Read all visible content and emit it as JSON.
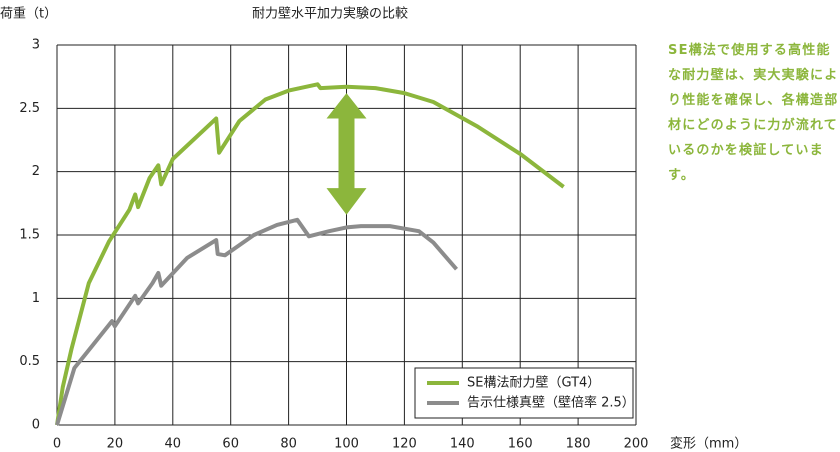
{
  "chart_data": {
    "type": "line",
    "title": "耐力壁水平加力実験の比較",
    "y_label": "荷重（t）",
    "x_label": "変形（mm）",
    "annotation": "SE構法で使用する高性能な耐力壁は、実大実験により性能を確保し、各構造部材にどのように力が流れているのかを検証しています。",
    "xlim": [
      0,
      200
    ],
    "xticks": [
      0,
      20,
      40,
      60,
      80,
      100,
      120,
      140,
      160,
      180,
      200
    ],
    "ylim": [
      0,
      3
    ],
    "yticks": [
      0,
      0.5,
      1,
      1.5,
      2,
      2.5,
      3
    ],
    "grid": true,
    "legend": "lower right",
    "series": [
      {
        "name": "SE構法耐力壁（GT4）",
        "color": "#8cb63c",
        "x": [
          0,
          2,
          5,
          11,
          18,
          25,
          27,
          28,
          32,
          35,
          36,
          40,
          55,
          56,
          63,
          72,
          80,
          90,
          91,
          100,
          110,
          120,
          130,
          145,
          160,
          175
        ],
        "values": [
          0,
          0.3,
          0.6,
          1.12,
          1.45,
          1.7,
          1.82,
          1.72,
          1.95,
          2.05,
          1.9,
          2.1,
          2.42,
          2.15,
          2.4,
          2.57,
          2.64,
          2.69,
          2.66,
          2.67,
          2.66,
          2.62,
          2.55,
          2.36,
          2.14,
          1.88
        ]
      },
      {
        "name": "告示仕様真壁（壁倍率 2.5）",
        "color": "#8c8c8c",
        "x": [
          0,
          6,
          12,
          19,
          20,
          27,
          28,
          33,
          35,
          36,
          45,
          55,
          55.5,
          58,
          68,
          76,
          83,
          87,
          94,
          100,
          105,
          115,
          125,
          130,
          138
        ],
        "values": [
          0,
          0.45,
          0.62,
          0.82,
          0.78,
          1.02,
          0.96,
          1.12,
          1.2,
          1.1,
          1.32,
          1.46,
          1.35,
          1.34,
          1.5,
          1.58,
          1.62,
          1.49,
          1.53,
          1.56,
          1.57,
          1.57,
          1.53,
          1.44,
          1.23
        ]
      }
    ]
  }
}
